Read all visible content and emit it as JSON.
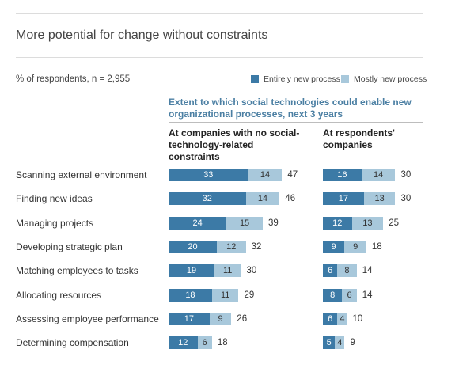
{
  "title": "More potential for change without constraints",
  "subtitle": "% of respondents, n = 2,955",
  "legend": [
    {
      "label": "Entirely new process",
      "color": "#3c7aa6"
    },
    {
      "label": "Mostly new process",
      "color": "#a8c8db"
    }
  ],
  "heading": "Extent to which social technologies could enable new organizational processes, next 3 years",
  "col1_header": "At companies with no social-technology-related constraints",
  "col2_header": "At respondents' companies",
  "chart_data": {
    "type": "bar",
    "orientation": "horizontal",
    "stacked": true,
    "categories": [
      "Scanning external environment",
      "Finding new ideas",
      "Managing projects",
      "Developing strategic plan",
      "Matching employees to tasks",
      "Allocating resources",
      "Assessing employee performance",
      "Determining compensation"
    ],
    "panels": [
      {
        "name": "At companies with no social-technology-related constraints",
        "series": [
          {
            "name": "Entirely new process",
            "values": [
              33,
              32,
              24,
              20,
              19,
              18,
              17,
              12
            ]
          },
          {
            "name": "Mostly new process",
            "values": [
              14,
              14,
              15,
              12,
              11,
              11,
              9,
              6
            ]
          }
        ],
        "totals": [
          47,
          46,
          39,
          32,
          30,
          29,
          26,
          18
        ]
      },
      {
        "name": "At respondents' companies",
        "series": [
          {
            "name": "Entirely new process",
            "values": [
              16,
              17,
              12,
              9,
              6,
              8,
              6,
              5
            ]
          },
          {
            "name": "Mostly new process",
            "values": [
              14,
              13,
              13,
              9,
              8,
              6,
              4,
              4
            ]
          }
        ],
        "totals": [
          30,
          30,
          25,
          18,
          14,
          14,
          10,
          9
        ]
      }
    ]
  }
}
